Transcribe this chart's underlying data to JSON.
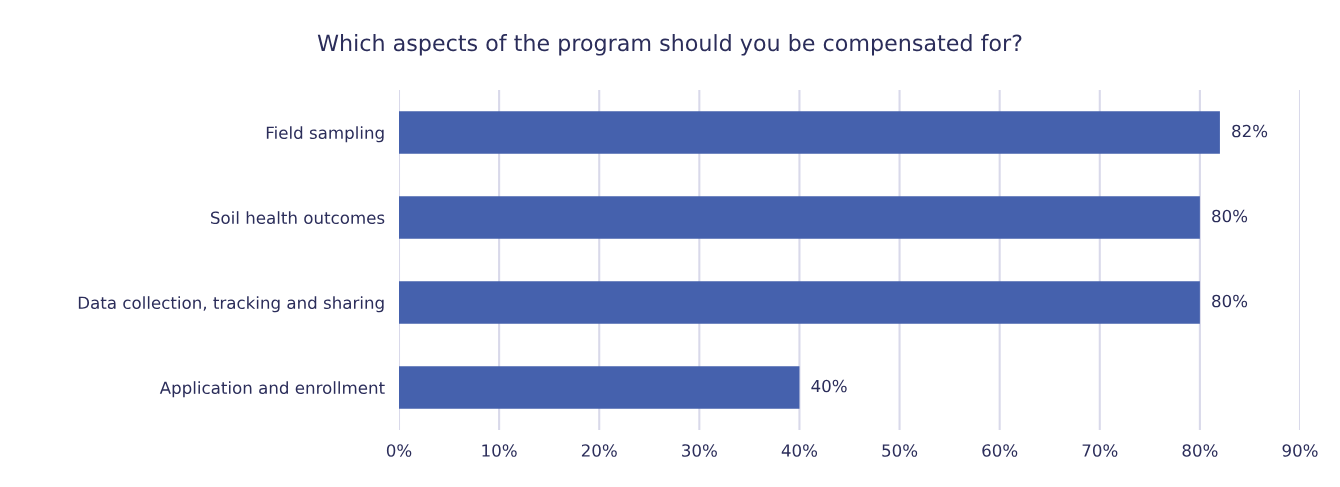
{
  "chart_data": {
    "type": "bar",
    "title": "Which aspects of the program should you be compensated for?",
    "orientation": "horizontal",
    "categories": [
      "Field sampling",
      "Soil health outcomes",
      "Data collection, tracking and sharing",
      "Application and enrollment"
    ],
    "values": [
      82,
      80,
      80,
      40
    ],
    "value_labels": [
      "82%",
      "80%",
      "80%",
      "40%"
    ],
    "color": "#4561ad",
    "xlim": [
      0,
      90
    ],
    "xticks": [
      {
        "value": 0,
        "label": "0%"
      },
      {
        "value": 10,
        "label": "10%"
      },
      {
        "value": 20,
        "label": "20%"
      },
      {
        "value": 30,
        "label": "30%"
      },
      {
        "value": 40,
        "label": "40%"
      },
      {
        "value": 50,
        "label": "50%"
      },
      {
        "value": 60,
        "label": "60%"
      },
      {
        "value": 70,
        "label": "70%"
      },
      {
        "value": 80,
        "label": "80%"
      },
      {
        "value": 90,
        "label": "90%"
      }
    ],
    "grid": "x",
    "legend": false
  }
}
